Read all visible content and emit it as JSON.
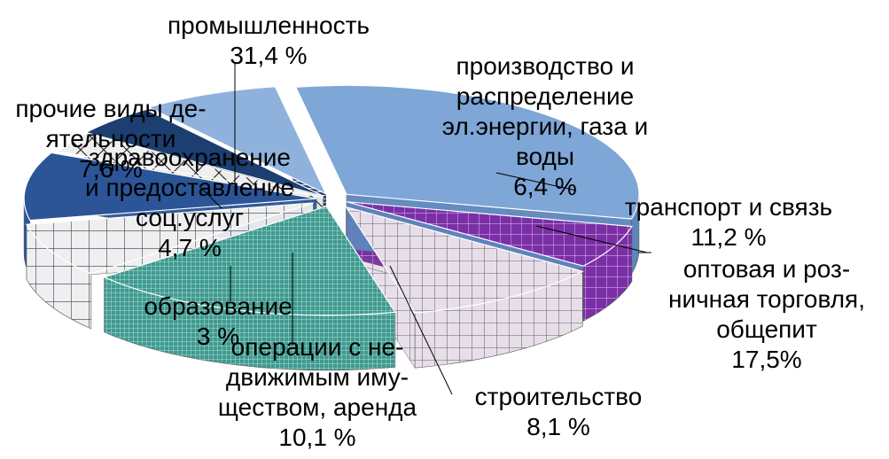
{
  "chart_data": {
    "type": "pie",
    "style": "3d-exploded",
    "slices": [
      {
        "label_lines": [
          "промышленность",
          "31,4 %"
        ],
        "value": 31.4,
        "color": "#7ea6d6",
        "pattern": "solid"
      },
      {
        "label_lines": [
          "производство и",
          "распределение",
          "эл.энергии, газа и",
          "воды",
          "6,4 %"
        ],
        "value": 6.4,
        "color": "#7b2fa6",
        "pattern": "grid"
      },
      {
        "label_lines": [
          "транспорт и связь",
          "11,2 %"
        ],
        "value": 11.2,
        "color": "#e4dde6",
        "pattern": "grid"
      },
      {
        "label_lines": [
          "оптовая и роз-",
          "ничная торговля,",
          "общепит",
          "17,5%"
        ],
        "value": 17.5,
        "color": "#3f9a90",
        "pattern": "fine-grid"
      },
      {
        "label_lines": [
          "строительство",
          "8,1 %"
        ],
        "value": 8.1,
        "color": "#efefef",
        "pattern": "grid"
      },
      {
        "label_lines": [
          "операции с не-",
          "движимым иму-",
          "ществом, аренда",
          "10,1 %"
        ],
        "value": 10.1,
        "color": "#2b5597",
        "pattern": "solid"
      },
      {
        "label_lines": [
          "образование",
          "3 %"
        ],
        "value": 3.0,
        "color": "#efefef",
        "pattern": "diamond"
      },
      {
        "label_lines": [
          "здравоохранение",
          "и предоставление",
          "соц.услуг",
          "4,7 %"
        ],
        "value": 4.7,
        "color": "#1c3e70",
        "pattern": "solid"
      },
      {
        "label_lines": [
          "прочие виды де-",
          "ятельности",
          "7,6 %"
        ],
        "value": 7.6,
        "color": "#1e3a66",
        "pattern": "stripes"
      }
    ]
  }
}
